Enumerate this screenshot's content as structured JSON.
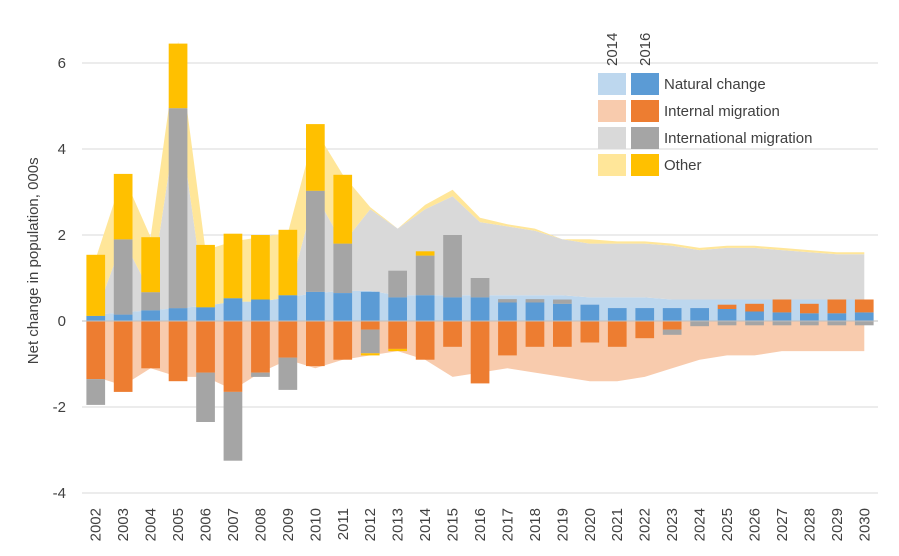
{
  "chart_data": {
    "type": "bar",
    "title": "",
    "ylabel": "Net change in population, 000s",
    "xlabel": "",
    "ylim": [
      -4,
      7
    ],
    "yticks": [
      -4,
      -2,
      0,
      2,
      4,
      6
    ],
    "grid": "horizontal",
    "legend_position": "top-right",
    "legend_years": [
      "2014",
      "2016"
    ],
    "categories": [
      "2002",
      "2003",
      "2004",
      "2005",
      "2006",
      "2007",
      "2008",
      "2009",
      "2010",
      "2011",
      "2012",
      "2013",
      "2014",
      "2015",
      "2016",
      "2017",
      "2018",
      "2019",
      "2020",
      "2021",
      "2022",
      "2023",
      "2024",
      "2025",
      "2026",
      "2027",
      "2028",
      "2029",
      "2030"
    ],
    "series_2016": [
      {
        "name": "Natural change",
        "color": "#5b9bd5",
        "values": [
          0.12,
          0.15,
          0.25,
          0.3,
          0.32,
          0.53,
          0.5,
          0.6,
          0.68,
          0.65,
          0.68,
          0.55,
          0.6,
          0.55,
          0.55,
          0.43,
          0.43,
          0.4,
          0.38,
          0.3,
          0.3,
          0.3,
          0.3,
          0.28,
          0.22,
          0.2,
          0.18,
          0.18,
          0.2
        ]
      },
      {
        "name": "Internal migration",
        "color": "#ed7d31",
        "values": [
          -1.35,
          -1.65,
          -1.1,
          -1.4,
          -1.2,
          -1.65,
          -1.2,
          -0.85,
          -1.05,
          -0.9,
          -0.2,
          -0.65,
          -0.9,
          -0.6,
          -1.45,
          -0.8,
          -0.6,
          -0.6,
          -0.5,
          -0.6,
          -0.4,
          -0.2,
          0,
          0.1,
          0.18,
          0.3,
          0.22,
          0.32,
          0.3
        ]
      },
      {
        "name": "International migration",
        "color": "#a5a5a5",
        "values": [
          -0.6,
          1.75,
          0.42,
          4.65,
          -1.15,
          -1.6,
          -0.1,
          -0.75,
          2.35,
          1.15,
          -0.55,
          0.62,
          0.92,
          1.45,
          0.45,
          0.08,
          0.08,
          0.1,
          0,
          0,
          0,
          -0.12,
          -0.12,
          -0.1,
          -0.1,
          -0.1,
          -0.1,
          -0.1,
          -0.1
        ]
      },
      {
        "name": "Other",
        "color": "#ffc000",
        "values": [
          1.42,
          1.52,
          1.28,
          1.5,
          1.45,
          1.5,
          1.5,
          1.52,
          1.55,
          1.6,
          -0.05,
          -0.05,
          0.1,
          0,
          0,
          0,
          0,
          0,
          0,
          0,
          0,
          0,
          0,
          0,
          0,
          0,
          0,
          0,
          0
        ]
      }
    ],
    "series_2014_area": [
      {
        "name": "Natural change",
        "color": "#bdd7ee",
        "values": [
          0.15,
          0.2,
          0.25,
          0.3,
          0.35,
          0.45,
          0.45,
          0.55,
          0.65,
          0.7,
          0.7,
          0.6,
          0.6,
          0.6,
          0.6,
          0.6,
          0.6,
          0.6,
          0.55,
          0.55,
          0.55,
          0.5,
          0.5,
          0.5,
          0.5,
          0.5,
          0.5,
          0.5,
          0.5
        ]
      },
      {
        "name": "Internal migration",
        "color": "#f8cbad",
        "values": [
          -1.3,
          -1.5,
          -1.1,
          -1.3,
          -1.3,
          -1.6,
          -1.2,
          -0.9,
          -1.1,
          -0.9,
          -0.8,
          -0.7,
          -0.9,
          -1.3,
          -1.2,
          -1.1,
          -1.2,
          -1.3,
          -1.4,
          -1.4,
          -1.3,
          -1.1,
          -0.9,
          -0.8,
          -0.8,
          -0.7,
          -0.7,
          -0.7,
          -0.7
        ]
      },
      {
        "name": "International migration",
        "color": "#d9d9d9",
        "values": [
          0,
          1.7,
          0.4,
          4.6,
          0,
          0,
          0,
          0,
          2.3,
          1.1,
          1.9,
          1.55,
          2.0,
          2.3,
          1.7,
          1.6,
          1.5,
          1.3,
          1.25,
          1.25,
          1.25,
          1.25,
          1.15,
          1.2,
          1.2,
          1.15,
          1.1,
          1.05,
          1.05
        ]
      },
      {
        "name": "Other",
        "color": "#ffe699",
        "values": [
          1.3,
          1.5,
          1.3,
          1.6,
          1.3,
          1.4,
          1.5,
          1.5,
          1.5,
          1.6,
          0.05,
          0.0,
          0.1,
          0.15,
          0.1,
          0.05,
          0.05,
          0.0,
          0.1,
          0.05,
          0.05,
          0.05,
          0.05,
          0.05,
          0.05,
          0.05,
          0.05,
          0.05,
          0.05
        ]
      }
    ]
  }
}
